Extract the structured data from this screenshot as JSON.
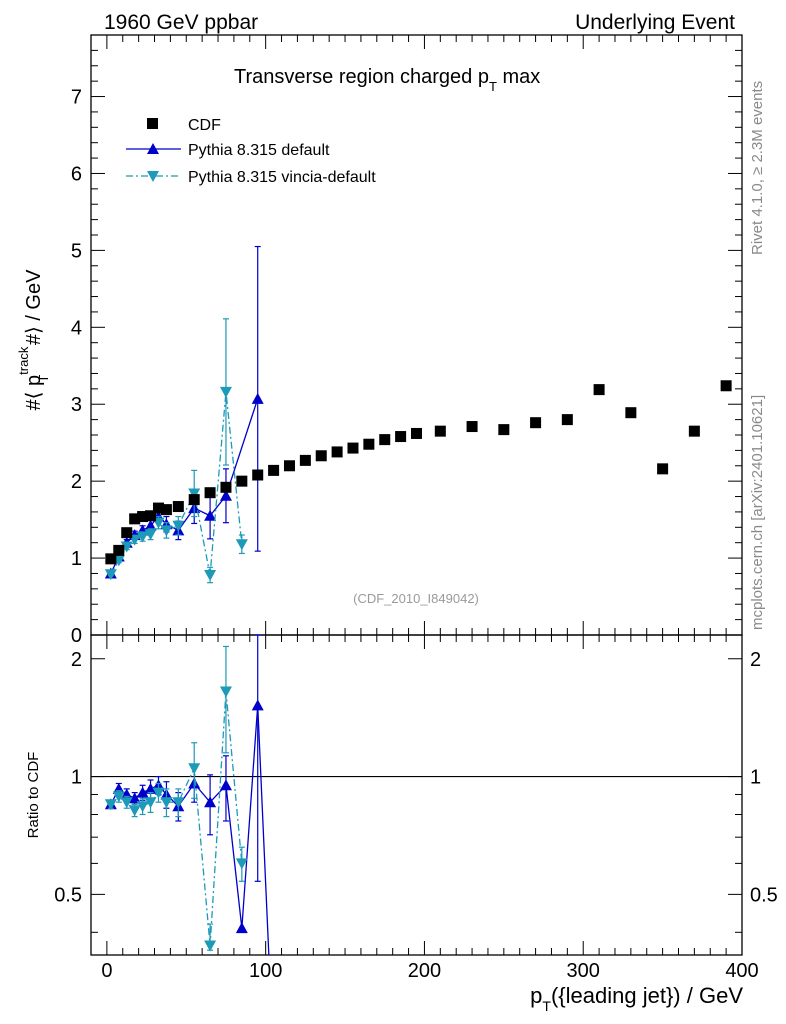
{
  "header": {
    "left": "1960 GeV ppbar",
    "right": "Underlying Event"
  },
  "side_labels": {
    "rivet": "Rivet 4.1.0, ≥ 2.3M events",
    "mcplots": "mcplots.cern.ch [arXiv:2401.10621]"
  },
  "watermark": "(CDF_2010_I849042)",
  "chart_data": [
    {
      "type": "scatter",
      "panel": "main",
      "title": "Transverse region charged p_T max",
      "title_main": "Transverse region charged p",
      "title_sub": "T",
      "title_end": " max",
      "ylabel": "#⟨ p_T^track #⟩ / GeV",
      "ylabel_parts": {
        "pre": "#⟨ p",
        "sup": "track",
        "sub": "T",
        "post": " #⟩ / GeV"
      },
      "xlim": [
        -10,
        400
      ],
      "ylim": [
        0,
        7.8
      ],
      "yticks": [
        0,
        1,
        2,
        3,
        4,
        5,
        6,
        7
      ],
      "ytick_labels": [
        "0",
        "1",
        "2",
        "3",
        "4",
        "5",
        "6",
        "7"
      ],
      "legend": [
        {
          "name": "CDF",
          "marker": "square",
          "color": "#000000"
        },
        {
          "name": "Pythia 8.315 default",
          "marker": "triangle-up",
          "color": "#0000cc",
          "line": "solid"
        },
        {
          "name": "Pythia 8.315 vincia-default",
          "marker": "triangle-down",
          "color": "#1c9ab8",
          "line": "dashdot"
        }
      ],
      "series": [
        {
          "name": "CDF",
          "x": [
            2.5,
            7.5,
            12.5,
            17.5,
            22.5,
            27.5,
            32.5,
            37.5,
            45,
            55,
            65,
            75,
            85,
            95,
            105,
            115,
            125,
            135,
            145,
            155,
            165,
            175,
            185,
            195,
            210,
            230,
            250,
            270,
            290,
            310,
            330,
            350,
            370,
            390
          ],
          "y": [
            0.99,
            1.1,
            1.33,
            1.51,
            1.54,
            1.55,
            1.65,
            1.63,
            1.67,
            1.76,
            1.85,
            1.92,
            2.0,
            2.08,
            2.14,
            2.2,
            2.27,
            2.33,
            2.38,
            2.43,
            2.48,
            2.54,
            2.58,
            2.62,
            2.65,
            2.71,
            2.67,
            2.76,
            2.8,
            3.19,
            2.89,
            2.16,
            2.65,
            3.24
          ]
        },
        {
          "name": "Pythia 8.315 default",
          "x": [
            2.5,
            7.5,
            12.5,
            17.5,
            22.5,
            27.5,
            32.5,
            37.5,
            45,
            55,
            65,
            75,
            95
          ],
          "y": [
            0.8,
            1.02,
            1.2,
            1.3,
            1.36,
            1.42,
            1.54,
            1.44,
            1.36,
            1.65,
            1.55,
            1.81,
            3.07
          ],
          "err": [
            0.02,
            0.03,
            0.04,
            0.05,
            0.06,
            0.07,
            0.08,
            0.1,
            0.12,
            0.2,
            0.3,
            0.35,
            1.98
          ]
        },
        {
          "name": "Pythia 8.315 vincia-default",
          "x": [
            2.5,
            7.5,
            12.5,
            17.5,
            22.5,
            27.5,
            32.5,
            37.5,
            45,
            55,
            65,
            75,
            85
          ],
          "y": [
            0.79,
            0.97,
            1.15,
            1.24,
            1.28,
            1.31,
            1.46,
            1.36,
            1.42,
            1.84,
            0.78,
            3.16,
            1.18
          ],
          "err": [
            0.02,
            0.03,
            0.04,
            0.05,
            0.06,
            0.07,
            0.08,
            0.1,
            0.12,
            0.3,
            0.1,
            0.95,
            0.12
          ]
        }
      ]
    },
    {
      "type": "line",
      "panel": "ratio",
      "ylabel": "Ratio to CDF",
      "xlabel": "p_T({leading jet}) / GeV",
      "xlabel_parts": {
        "pre": "p",
        "sub": "T",
        "post": "({leading jet}) / GeV"
      },
      "xlim": [
        -10,
        400
      ],
      "ylim": [
        0.35,
        2.3
      ],
      "yticks": [
        0.5,
        1,
        2
      ],
      "ytick_labels": [
        "0.5",
        "1",
        "2"
      ],
      "xticks": [
        0,
        100,
        200,
        300,
        400
      ],
      "xtick_labels": [
        "0",
        "100",
        "200",
        "300",
        "400"
      ],
      "reference": 1.0,
      "series": [
        {
          "name": "Pythia 8.315 default",
          "x": [
            2.5,
            7.5,
            12.5,
            17.5,
            22.5,
            27.5,
            32.5,
            37.5,
            45,
            55,
            65,
            75,
            85,
            95,
            102
          ],
          "y": [
            0.85,
            0.93,
            0.9,
            0.88,
            0.91,
            0.93,
            0.95,
            0.9,
            0.84,
            0.96,
            0.86,
            0.95,
            0.41,
            1.52,
            0.3
          ],
          "err": [
            0.02,
            0.03,
            0.03,
            0.03,
            0.04,
            0.05,
            0.05,
            0.07,
            0.07,
            0.1,
            0.15,
            0.18,
            0.0,
            0.98,
            0.0
          ]
        },
        {
          "name": "Pythia 8.315 vincia-default",
          "x": [
            2.5,
            7.5,
            12.5,
            17.5,
            22.5,
            27.5,
            32.5,
            37.5,
            45,
            55,
            65,
            75,
            85
          ],
          "y": [
            0.85,
            0.89,
            0.86,
            0.82,
            0.84,
            0.86,
            0.91,
            0.86,
            0.86,
            1.05,
            0.37,
            1.65,
            0.6
          ],
          "err": [
            0.02,
            0.03,
            0.03,
            0.03,
            0.04,
            0.05,
            0.05,
            0.07,
            0.07,
            0.17,
            0.05,
            0.5,
            0.06
          ]
        }
      ]
    }
  ]
}
